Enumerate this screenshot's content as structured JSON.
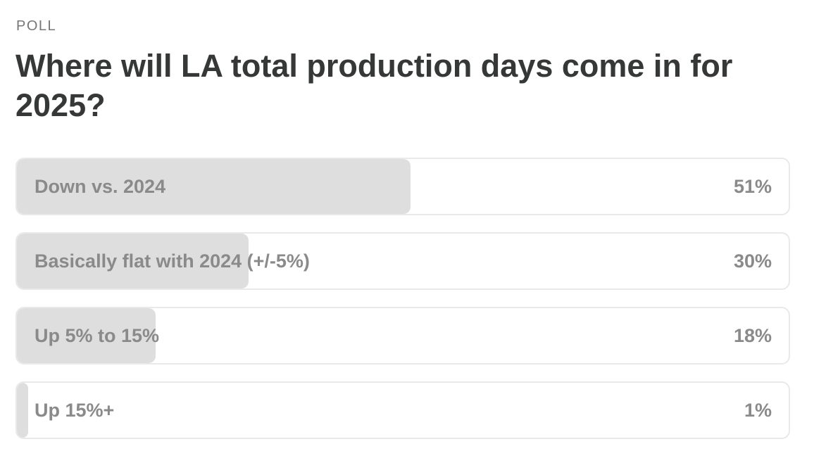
{
  "poll": {
    "label": "POLL",
    "question": "Where will LA total production days come in for 2025?",
    "options": [
      {
        "text": "Down vs. 2024",
        "percent_label": "51%",
        "percent": 51
      },
      {
        "text": "Basically flat with 2024 (+/-5%)",
        "percent_label": "30%",
        "percent": 30
      },
      {
        "text": "Up 5% to 15%",
        "percent_label": "18%",
        "percent": 18
      },
      {
        "text": "Up 15%+",
        "percent_label": "1%",
        "percent": 1
      }
    ]
  },
  "colors": {
    "fill": "#dedede",
    "border": "#e9e9e9",
    "option_text": "#8a8a8a",
    "question_text": "#363737",
    "label_text": "#777777"
  }
}
